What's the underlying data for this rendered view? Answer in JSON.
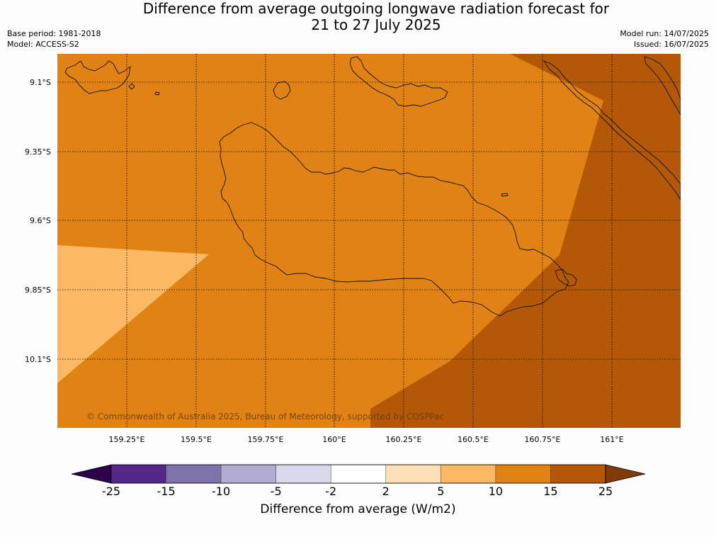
{
  "title": {
    "line1": "Difference from average outgoing longwave radiation forecast for",
    "line2": "21 to 27 July 2025"
  },
  "meta": {
    "base_period": "Base period: 1981-2018",
    "model": "Model: ACCESS-S2",
    "model_run": "Model run: 14/07/2025",
    "issued": "Issued: 16/07/2025"
  },
  "map": {
    "latitude_ticks": [
      "9.1°S",
      "9.35°S",
      "9.6°S",
      "9.85°S",
      "10.1°S"
    ],
    "longitude_ticks": [
      "159.25°E",
      "159.5°E",
      "159.75°E",
      "160°E",
      "160.25°E",
      "160.5°E",
      "160.75°E",
      "161°E"
    ],
    "copyright": "© Commonwealth of Australia 2025, Bureau of Meteorology, supported by COSPPac",
    "field_colors": {
      "5_to_10": "#fdb863",
      "10_to_15": "#e08214",
      "15_to_25": "#b35806"
    }
  },
  "colorbar": {
    "label": "Difference from average (W/m2)",
    "ticks": [
      "-25",
      "-15",
      "-10",
      "-5",
      "-2",
      "2",
      "5",
      "10",
      "15",
      "25"
    ],
    "colors": [
      "#2d004b",
      "#542788",
      "#8073ac",
      "#b2abd2",
      "#d8daeb",
      "#ffffff",
      "#fee0b6",
      "#fdb863",
      "#e08214",
      "#b35806",
      "#7f3b08"
    ]
  }
}
